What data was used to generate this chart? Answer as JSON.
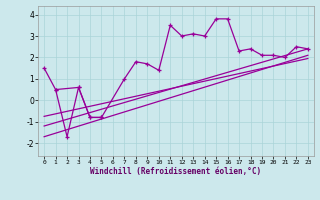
{
  "xlabel": "Windchill (Refroidissement éolien,°C)",
  "background_color": "#cce8ec",
  "grid_color": "#aad4d8",
  "line_color": "#990099",
  "xlim": [
    -0.5,
    23.5
  ],
  "ylim": [
    -2.6,
    4.4
  ],
  "yticks": [
    -2,
    -1,
    0,
    1,
    2,
    3,
    4
  ],
  "xticks": [
    0,
    1,
    2,
    3,
    4,
    5,
    6,
    7,
    8,
    9,
    10,
    11,
    12,
    13,
    14,
    15,
    16,
    17,
    18,
    19,
    20,
    21,
    22,
    23
  ],
  "curve1_x": [
    0,
    1,
    3,
    4,
    5,
    7,
    8,
    9,
    10,
    11,
    12,
    13,
    14,
    15,
    16,
    17,
    18,
    19,
    20,
    21,
    22,
    23
  ],
  "curve1_y": [
    1.5,
    0.5,
    0.6,
    -0.8,
    -0.8,
    1.0,
    1.8,
    1.7,
    1.4,
    3.5,
    3.0,
    3.1,
    3.0,
    3.8,
    3.8,
    2.3,
    2.4,
    2.1,
    2.1,
    2.0,
    2.5,
    2.4
  ],
  "curve2_x": [
    1,
    2,
    3,
    4,
    5
  ],
  "curve2_y": [
    0.5,
    -1.7,
    0.6,
    -0.8,
    -0.8
  ],
  "line1": [
    -1.7,
    2.1
  ],
  "line2": [
    -1.2,
    2.4
  ],
  "line3": [
    -0.75,
    1.95
  ]
}
